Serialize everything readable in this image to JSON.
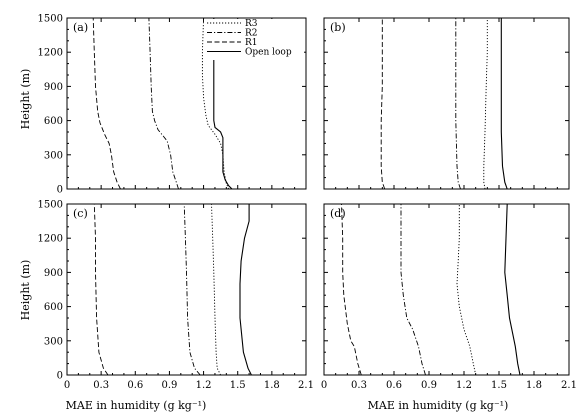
{
  "chart_data": {
    "type": "line",
    "xlabel": "MAE in humidity (g kg⁻¹)",
    "ylabel": "Height (m)",
    "xlim": [
      0,
      2.1
    ],
    "ylim": [
      0,
      1500
    ],
    "xticks": [
      "0",
      "0.3",
      "0.6",
      "0.9",
      "1.2",
      "1.5",
      "1.8",
      "2.1"
    ],
    "yticks": [
      "0",
      "300",
      "600",
      "900",
      "1200",
      "1500"
    ],
    "legend": {
      "placement": "top-right of panel (a)",
      "entries": [
        "R3",
        "R2",
        "R1",
        "Open loop"
      ]
    },
    "panels": [
      {
        "label": "(a)",
        "series": [
          {
            "name": "R3",
            "style": "dotted",
            "points": [
              [
                1.42,
                0
              ],
              [
                1.4,
                50
              ],
              [
                1.38,
                150
              ],
              [
                1.37,
                300
              ],
              [
                1.35,
                400
              ],
              [
                1.3,
                480
              ],
              [
                1.24,
                560
              ],
              [
                1.22,
                650
              ],
              [
                1.2,
                800
              ],
              [
                1.19,
                1000
              ],
              [
                1.19,
                1200
              ],
              [
                1.2,
                1500
              ]
            ]
          },
          {
            "name": "R2",
            "style": "dash-dot",
            "points": [
              [
                0.98,
                0
              ],
              [
                0.96,
                60
              ],
              [
                0.93,
                150
              ],
              [
                0.91,
                300
              ],
              [
                0.88,
                420
              ],
              [
                0.85,
                460
              ],
              [
                0.8,
                520
              ],
              [
                0.77,
                600
              ],
              [
                0.75,
                680
              ],
              [
                0.74,
                900
              ],
              [
                0.73,
                1200
              ],
              [
                0.72,
                1500
              ]
            ]
          },
          {
            "name": "R1",
            "style": "dashed",
            "points": [
              [
                0.47,
                0
              ],
              [
                0.44,
                60
              ],
              [
                0.41,
                150
              ],
              [
                0.39,
                300
              ],
              [
                0.37,
                400
              ],
              [
                0.33,
                480
              ],
              [
                0.29,
                580
              ],
              [
                0.27,
                680
              ],
              [
                0.25,
                900
              ],
              [
                0.24,
                1200
              ],
              [
                0.23,
                1500
              ]
            ]
          },
          {
            "name": "Open loop",
            "style": "solid",
            "points": [
              [
                1.45,
                0
              ],
              [
                1.42,
                30
              ],
              [
                1.39,
                80
              ],
              [
                1.37,
                150
              ],
              [
                1.37,
                300
              ],
              [
                1.37,
                450
              ],
              [
                1.35,
                500
              ],
              [
                1.3,
                540
              ],
              [
                1.29,
                600
              ],
              [
                1.29,
                900
              ],
              [
                1.29,
                1200
              ],
              [
                1.29,
                1500
              ]
            ]
          }
        ]
      },
      {
        "label": "(b)",
        "series": [
          {
            "name": "R3",
            "style": "dotted",
            "points": [
              [
                1.38,
                0
              ],
              [
                1.37,
                60
              ],
              [
                1.37,
                200
              ],
              [
                1.38,
                500
              ],
              [
                1.39,
                900
              ],
              [
                1.4,
                1200
              ],
              [
                1.4,
                1500
              ]
            ]
          },
          {
            "name": "R2",
            "style": "dash-dot",
            "points": [
              [
                1.17,
                0
              ],
              [
                1.15,
                60
              ],
              [
                1.14,
                200
              ],
              [
                1.13,
                600
              ],
              [
                1.13,
                900
              ],
              [
                1.13,
                1200
              ],
              [
                1.13,
                1500
              ]
            ]
          },
          {
            "name": "R1",
            "style": "dashed",
            "points": [
              [
                0.52,
                0
              ],
              [
                0.5,
                60
              ],
              [
                0.49,
                200
              ],
              [
                0.49,
                600
              ],
              [
                0.5,
                900
              ],
              [
                0.5,
                1200
              ],
              [
                0.5,
                1500
              ]
            ]
          },
          {
            "name": "Open loop",
            "style": "solid",
            "points": [
              [
                1.57,
                0
              ],
              [
                1.55,
                60
              ],
              [
                1.53,
                200
              ],
              [
                1.52,
                500
              ],
              [
                1.52,
                900
              ],
              [
                1.52,
                1200
              ],
              [
                1.52,
                1500
              ]
            ]
          }
        ]
      },
      {
        "label": "(c)",
        "series": [
          {
            "name": "R3",
            "style": "dotted",
            "points": [
              [
                1.35,
                0
              ],
              [
                1.32,
                60
              ],
              [
                1.31,
                200
              ],
              [
                1.3,
                500
              ],
              [
                1.29,
                900
              ],
              [
                1.28,
                1200
              ],
              [
                1.27,
                1500
              ]
            ]
          },
          {
            "name": "R2",
            "style": "dash-dot",
            "points": [
              [
                1.17,
                0
              ],
              [
                1.12,
                60
              ],
              [
                1.08,
                200
              ],
              [
                1.06,
                500
              ],
              [
                1.05,
                900
              ],
              [
                1.04,
                1200
              ],
              [
                1.03,
                1500
              ]
            ]
          },
          {
            "name": "R1",
            "style": "dashed",
            "points": [
              [
                0.36,
                0
              ],
              [
                0.32,
                60
              ],
              [
                0.28,
                200
              ],
              [
                0.26,
                500
              ],
              [
                0.25,
                900
              ],
              [
                0.25,
                1200
              ],
              [
                0.24,
                1500
              ]
            ]
          },
          {
            "name": "Open loop",
            "style": "solid",
            "points": [
              [
                1.62,
                0
              ],
              [
                1.59,
                60
              ],
              [
                1.55,
                200
              ],
              [
                1.52,
                500
              ],
              [
                1.52,
                800
              ],
              [
                1.53,
                1000
              ],
              [
                1.56,
                1200
              ],
              [
                1.6,
                1350
              ],
              [
                1.6,
                1500
              ]
            ]
          }
        ]
      },
      {
        "label": "(d)",
        "series": [
          {
            "name": "R3",
            "style": "dotted",
            "points": [
              [
                1.3,
                0
              ],
              [
                1.28,
                100
              ],
              [
                1.25,
                250
              ],
              [
                1.2,
                400
              ],
              [
                1.16,
                600
              ],
              [
                1.14,
                800
              ],
              [
                1.15,
                1000
              ],
              [
                1.16,
                1200
              ],
              [
                1.16,
                1500
              ]
            ]
          },
          {
            "name": "R2",
            "style": "dash-dot",
            "points": [
              [
                0.87,
                0
              ],
              [
                0.84,
                100
              ],
              [
                0.81,
                250
              ],
              [
                0.76,
                400
              ],
              [
                0.71,
                500
              ],
              [
                0.68,
                700
              ],
              [
                0.66,
                900
              ],
              [
                0.66,
                1200
              ],
              [
                0.66,
                1500
              ]
            ]
          },
          {
            "name": "R1",
            "style": "dashed",
            "points": [
              [
                0.32,
                0
              ],
              [
                0.29,
                100
              ],
              [
                0.26,
                250
              ],
              [
                0.23,
                300
              ],
              [
                0.2,
                450
              ],
              [
                0.17,
                700
              ],
              [
                0.16,
                900
              ],
              [
                0.16,
                1200
              ],
              [
                0.15,
                1500
              ]
            ]
          },
          {
            "name": "Open loop",
            "style": "solid",
            "points": [
              [
                1.68,
                0
              ],
              [
                1.66,
                100
              ],
              [
                1.64,
                250
              ],
              [
                1.62,
                350
              ],
              [
                1.59,
                500
              ],
              [
                1.57,
                700
              ],
              [
                1.55,
                900
              ],
              [
                1.56,
                1200
              ],
              [
                1.57,
                1500
              ]
            ]
          }
        ]
      }
    ]
  }
}
